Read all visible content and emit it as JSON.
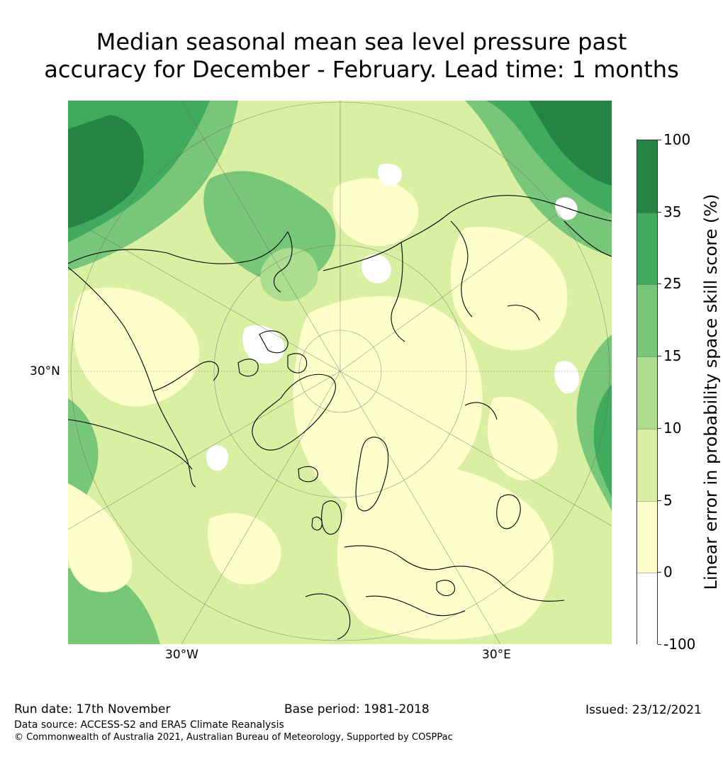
{
  "title": {
    "line1": "Median seasonal mean sea level pressure past",
    "line2": "accuracy for December - February. Lead time: 1 months"
  },
  "map": {
    "lat_label": "30°N",
    "lon_labels": [
      "30°W",
      "30°E"
    ]
  },
  "colorbar": {
    "label": "Linear error in probability space skill score (%)",
    "ticks": [
      "100",
      "35",
      "25",
      "15",
      "10",
      "5",
      "0",
      "-100"
    ],
    "bins": [
      {
        "range": "35–100",
        "color": "#238443"
      },
      {
        "range": "25–35",
        "color": "#41ab5d"
      },
      {
        "range": "15–25",
        "color": "#78c679"
      },
      {
        "range": "10–15",
        "color": "#addd8e"
      },
      {
        "range": "5–10",
        "color": "#d9f0a3"
      },
      {
        "range": "0–5",
        "color": "#ffffcc"
      },
      {
        "range": "-100–0",
        "color": "#ffffff"
      }
    ]
  },
  "footer": {
    "run_date": "Run date: 17th November",
    "base_period": "Base period: 1981-2018",
    "issued": "Issued: 23/12/2021",
    "data_source": "Data source: ACCESS-S2 and ERA5 Climate Reanalysis",
    "copyright": "© Commonwealth of Australia 2021, Australian Bureau of Meteorology, Supported by COSPPac"
  }
}
